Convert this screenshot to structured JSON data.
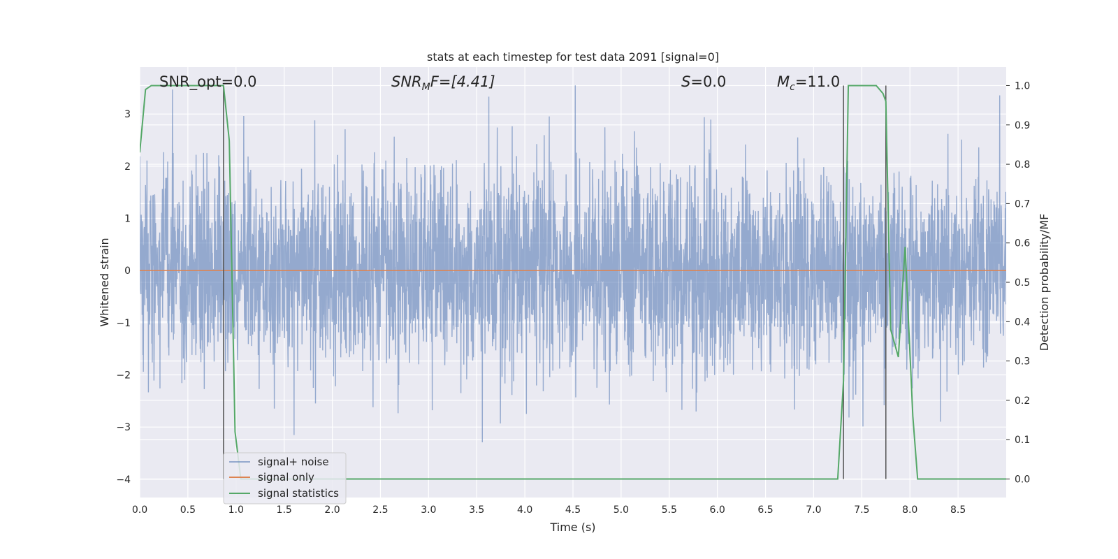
{
  "chart_data": {
    "type": "line",
    "title": "stats at each timestep for test data 2091 [signal=0]",
    "xlabel": "Time (s)",
    "ylabel": "Whitened strain",
    "ylabel_right": "Detection probability/MF",
    "xlim": [
      0.0,
      9.0
    ],
    "ylim": [
      -4.35,
      3.9
    ],
    "ylim_right": [
      -0.047,
      1.047
    ],
    "xticks": [
      "0.0",
      "0.5",
      "1.0",
      "1.5",
      "2.0",
      "2.5",
      "3.0",
      "3.5",
      "4.0",
      "4.5",
      "5.0",
      "5.5",
      "6.0",
      "6.5",
      "7.0",
      "7.5",
      "8.0",
      "8.5"
    ],
    "yticks": [
      "3",
      "2",
      "1",
      "0",
      "−1",
      "−2",
      "−3",
      "−4"
    ],
    "yticks_right": [
      "0.0",
      "0.1",
      "0.2",
      "0.3",
      "0.4",
      "0.5",
      "0.6",
      "0.7",
      "0.8",
      "0.9",
      "1.0"
    ],
    "grid": true,
    "legend_position": "lower-left",
    "annotations": {
      "snr_opt": "SNR_opt=0.0",
      "snr_mf_main": "SNR",
      "snr_mf_sub": "M",
      "snr_mf_rest": "F=[4.41]",
      "s_main": "S",
      "s_rest": "=0.0",
      "mc_main": "M",
      "mc_sub": "c",
      "mc_rest": "=11.0"
    },
    "vlines_x": [
      0.87,
      7.31,
      7.75
    ],
    "series": [
      {
        "name": "signal+ noise",
        "color": "#4c72b0",
        "opacity": 0.55,
        "kind": "noise",
        "noise_sigma": 0.95,
        "noise_range": [
          -3.3,
          3.55
        ],
        "n_samples": 3600
      },
      {
        "name": "signal only",
        "color": "#dd8452",
        "kind": "constant",
        "value": 0.0
      },
      {
        "name": "signal statistics",
        "color": "#55a868",
        "axis": "right",
        "x": [
          0.0,
          0.06,
          0.12,
          0.2,
          0.3,
          0.5,
          0.7,
          0.87,
          0.93,
          0.99,
          1.05,
          1.2,
          1.5,
          2.0,
          3.0,
          4.0,
          5.0,
          6.0,
          7.0,
          7.25,
          7.31,
          7.36,
          7.45,
          7.55,
          7.65,
          7.72,
          7.75,
          7.8,
          7.88,
          7.95,
          8.03,
          8.08,
          8.2,
          8.5,
          8.72,
          8.8,
          8.9,
          9.0
        ],
        "y": [
          0.83,
          0.99,
          1.0,
          1.0,
          1.0,
          1.0,
          1.0,
          1.0,
          0.86,
          0.12,
          0.0,
          0.0,
          0.0,
          0.0,
          0.0,
          0.0,
          0.0,
          0.0,
          0.0,
          0.0,
          0.25,
          1.0,
          1.0,
          1.0,
          1.0,
          0.98,
          0.96,
          0.38,
          0.31,
          0.59,
          0.16,
          0.0,
          0.0,
          0.0,
          0.0,
          0.0,
          0.0,
          0.0
        ]
      }
    ]
  }
}
